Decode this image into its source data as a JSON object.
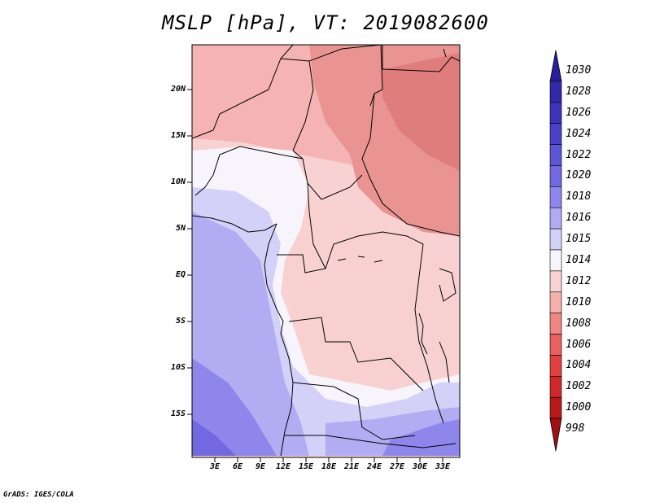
{
  "title": "MSLP [hPa], VT: 2019082600",
  "lat_labels": [
    "20N",
    "15N",
    "10N",
    "5N",
    "EQ",
    "5S",
    "10S",
    "15S"
  ],
  "lon_labels": [
    "3E",
    "6E",
    "9E",
    "12E",
    "15E",
    "18E",
    "21E",
    "24E",
    "27E",
    "30E",
    "33E"
  ],
  "colorbar": {
    "levels": [
      "1030",
      "1028",
      "1026",
      "1024",
      "1022",
      "1020",
      "1018",
      "1016",
      "1015",
      "1014",
      "1012",
      "1010",
      "1008",
      "1006",
      "1004",
      "1002",
      "1000",
      "998"
    ],
    "colors": [
      "#2a1e9a",
      "#3328a8",
      "#3d33b8",
      "#4a41c6",
      "#5c55d6",
      "#7268e0",
      "#8e86ea",
      "#b0abf2",
      "#d4d1f8",
      "#f7f5fb",
      "#fad4d4",
      "#f6b0ae",
      "#f08684",
      "#e86060",
      "#e04040",
      "#d02828",
      "#b81818",
      "#a01010"
    ]
  },
  "credit": "GrADS: IGES/COLA"
}
